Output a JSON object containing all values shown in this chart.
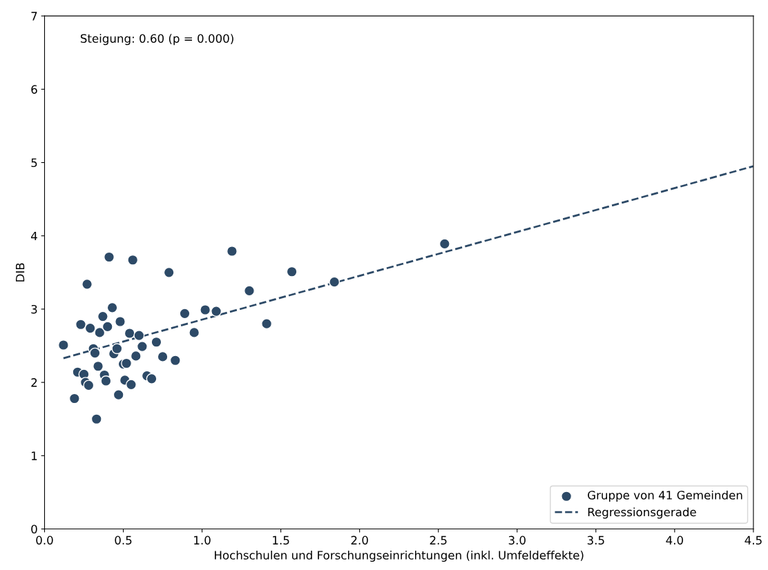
{
  "chart_data": {
    "type": "scatter",
    "xlabel": "Hochschulen und Forschungseinrichtungen (inkl. Umfeldeffekte)",
    "ylabel": "DIB",
    "annotations": [
      "Steigung: 0.60 (p = 0.000)"
    ],
    "series": [
      {
        "name": "Gruppe von 41 Gemeinden",
        "color": "#2d4a67",
        "marker": "circle",
        "x": [
          0.12,
          0.19,
          0.21,
          0.23,
          0.25,
          0.26,
          0.27,
          0.28,
          0.29,
          0.31,
          0.32,
          0.33,
          0.34,
          0.35,
          0.37,
          0.38,
          0.39,
          0.4,
          0.41,
          0.43,
          0.44,
          0.46,
          0.47,
          0.48,
          0.5,
          0.51,
          0.52,
          0.54,
          0.55,
          0.56,
          0.58,
          0.6,
          0.62,
          0.65,
          0.68,
          0.71,
          0.75,
          0.79,
          0.83,
          0.89,
          0.95,
          1.02,
          1.09,
          1.19,
          1.3,
          1.41,
          1.57,
          1.84,
          2.54
        ],
        "values": [
          2.51,
          1.78,
          2.14,
          2.79,
          2.11,
          2.0,
          3.34,
          1.96,
          2.74,
          2.46,
          2.4,
          1.5,
          2.22,
          2.68,
          2.9,
          2.1,
          2.02,
          2.76,
          3.71,
          3.02,
          2.39,
          2.46,
          1.83,
          2.83,
          2.25,
          2.03,
          2.26,
          2.67,
          1.97,
          3.67,
          2.36,
          2.64,
          2.49,
          2.09,
          2.05,
          2.55,
          2.35,
          3.5,
          2.3,
          2.94,
          2.68,
          2.99,
          2.97,
          3.79,
          3.25,
          2.8,
          3.51,
          3.37,
          3.89
        ]
      },
      {
        "name": "Regressionsgerade",
        "type": "line",
        "color": "#2d4a67",
        "line_style": "dashed",
        "marker": "none",
        "x": [
          0.12,
          4.5
        ],
        "values": [
          2.33,
          4.95
        ]
      }
    ],
    "xlim": [
      0,
      4.5
    ],
    "ylim": [
      0,
      7
    ],
    "xticks": [
      {
        "value": 0,
        "label": "0.0"
      },
      {
        "value": 0.5,
        "label": "0.5"
      },
      {
        "value": 1,
        "label": "1.0"
      },
      {
        "value": 1.5,
        "label": "1.5"
      },
      {
        "value": 2,
        "label": "2.0"
      },
      {
        "value": 2.5,
        "label": "2.5"
      },
      {
        "value": 3,
        "label": "3.0"
      },
      {
        "value": 3.5,
        "label": "3.5"
      },
      {
        "value": 4,
        "label": "4.0"
      },
      {
        "value": 4.5,
        "label": "4.5"
      }
    ],
    "yticks": [
      0,
      1,
      2,
      3,
      4,
      5,
      6,
      7
    ],
    "grid": false,
    "legend": "bottom right"
  }
}
